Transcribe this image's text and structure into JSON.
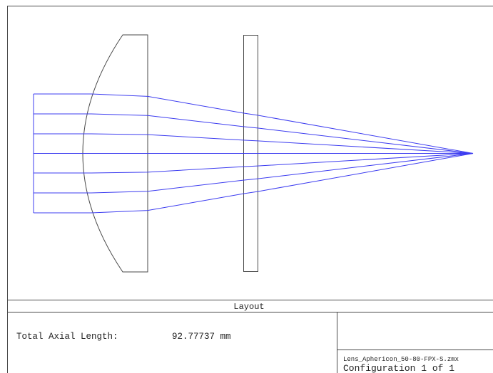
{
  "figure": {
    "section_title": "Layout",
    "axial_length_label": "Total Axial Length:",
    "axial_length_value": "92.77737 mm",
    "file_name": "Lens_Aphericon_50-80-FPX-S.zmx",
    "configuration": "Configuration 1 of 1"
  },
  "colors": {
    "ray": "#3c3cf0",
    "outline": "#4a4a4a",
    "background": "#ffffff"
  },
  "optics": {
    "ray_count": 7,
    "elements": [
      "aspheric-lens",
      "plate-window"
    ]
  }
}
